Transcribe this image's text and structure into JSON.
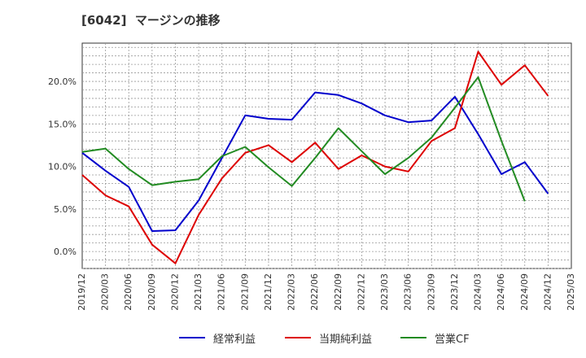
{
  "title": "[6042]  マージンの推移",
  "chart_data": {
    "type": "line",
    "title": "[6042]  マージンの推移",
    "xlabel": "",
    "ylabel": "",
    "ylim": [
      -2,
      24.5
    ],
    "yticks": [
      0,
      5,
      10,
      15,
      20
    ],
    "ytick_labels": [
      "0.0%",
      "5.0%",
      "10.0%",
      "15.0%",
      "20.0%"
    ],
    "categories": [
      "2019/12",
      "2020/03",
      "2020/06",
      "2020/09",
      "2020/12",
      "2021/03",
      "2021/06",
      "2021/09",
      "2021/12",
      "2022/03",
      "2022/06",
      "2022/09",
      "2022/12",
      "2023/03",
      "2023/06",
      "2023/09",
      "2023/12",
      "2024/03",
      "2024/06",
      "2024/09",
      "2024/12",
      "2025/03"
    ],
    "grid": true,
    "legend_position": "bottom",
    "series": [
      {
        "name": "経常利益",
        "color": "#0000cc",
        "values": [
          11.6,
          9.5,
          7.6,
          2.4,
          2.5,
          6.0,
          11.0,
          16.0,
          15.6,
          15.5,
          18.7,
          18.4,
          17.4,
          16.0,
          15.2,
          15.4,
          18.2,
          13.8,
          9.1,
          10.5,
          6.8,
          null
        ]
      },
      {
        "name": "当期純利益",
        "color": "#dd0000",
        "values": [
          9.0,
          6.6,
          5.3,
          0.8,
          -1.4,
          4.3,
          8.6,
          11.6,
          12.5,
          10.5,
          12.8,
          9.7,
          11.3,
          10.0,
          9.4,
          13.0,
          14.5,
          23.5,
          19.6,
          21.9,
          18.3,
          null
        ]
      },
      {
        "name": "営業CF",
        "color": "#228b22",
        "values": [
          11.7,
          12.1,
          9.7,
          7.8,
          8.2,
          8.5,
          11.2,
          12.3,
          9.9,
          7.7,
          11.0,
          14.5,
          11.8,
          9.1,
          11.0,
          13.4,
          16.9,
          20.5,
          13.0,
          5.9,
          null,
          null
        ]
      }
    ]
  }
}
